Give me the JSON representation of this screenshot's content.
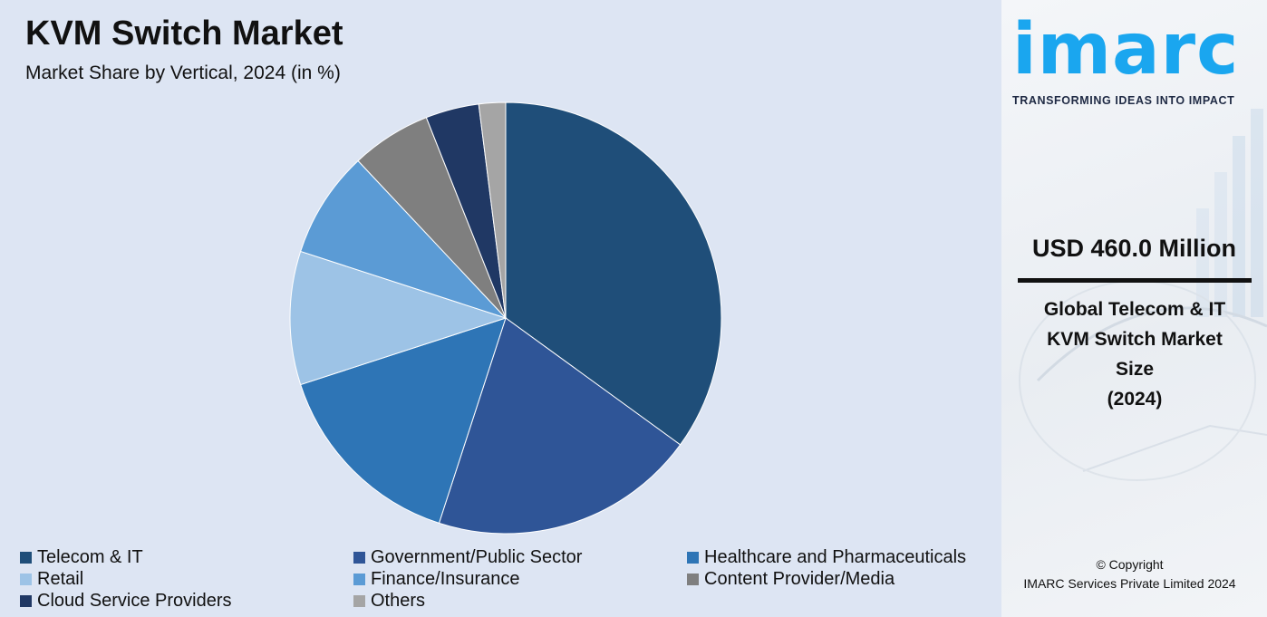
{
  "header": {
    "title": "KVM Switch Market",
    "subtitle": "Market Share by Vertical, 2024 (in %)"
  },
  "chart_data": {
    "type": "pie",
    "title": "KVM Switch Market",
    "subtitle": "Market Share by Vertical, 2024 (in %)",
    "legend_position": "bottom",
    "start_angle_deg": 0,
    "direction": "clockwise",
    "slices": [
      {
        "label": "Telecom & IT",
        "value": 35,
        "color": "#1f4e79"
      },
      {
        "label": "Government/Public Sector",
        "value": 20,
        "color": "#2f5597"
      },
      {
        "label": "Healthcare and Pharmaceuticals",
        "value": 15,
        "color": "#2e75b6"
      },
      {
        "label": "Retail",
        "value": 10,
        "color": "#9dc3e6"
      },
      {
        "label": "Finance/Insurance",
        "value": 8,
        "color": "#5b9bd5"
      },
      {
        "label": "Content Provider/Media",
        "value": 6,
        "color": "#7f7f7f"
      },
      {
        "label": "Cloud Service Providers",
        "value": 4,
        "color": "#203864"
      },
      {
        "label": "Others",
        "value": 2,
        "color": "#a5a5a5"
      }
    ]
  },
  "sidebar": {
    "logo_text": "imarc",
    "tagline": "TRANSFORMING IDEAS INTO IMPACT",
    "market_value": "USD 460.0 Million",
    "description_lines": [
      "Global Telecom & IT",
      "KVM Switch Market",
      "Size",
      "(2024)"
    ],
    "copyright_line1": "© Copyright",
    "copyright_line2": "IMARC Services Private Limited 2024",
    "logo_color": "#1aa6ef"
  }
}
